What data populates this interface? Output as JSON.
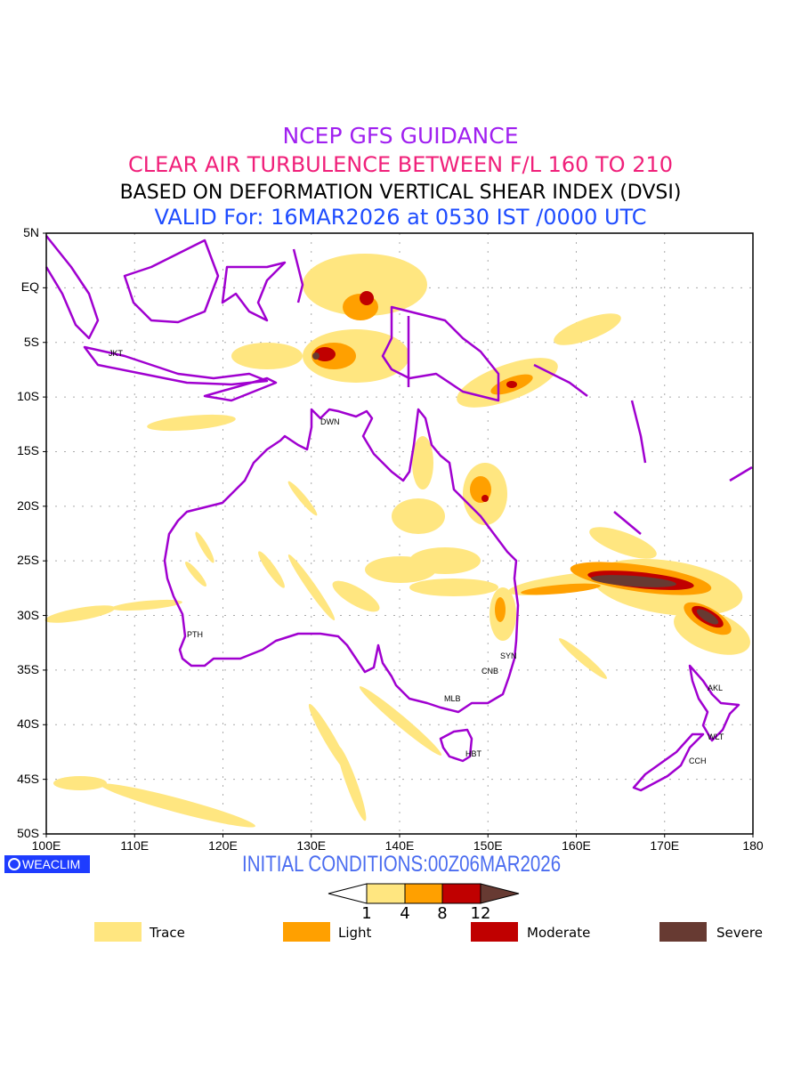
{
  "titles": {
    "line1": "NCEP GFS GUIDANCE",
    "line2": "CLEAR AIR TURBULENCE BETWEEN F/L 160 TO 210",
    "line3": "BASED ON DEFORMATION VERTICAL SHEAR INDEX (DVSI)",
    "line4": "VALID For: 16MAR2026 at 0530 IST /0000 UTC"
  },
  "axes": {
    "lat_labels": [
      "5N",
      "EQ",
      "5S",
      "10S",
      "15S",
      "20S",
      "25S",
      "30S",
      "35S",
      "40S",
      "45S",
      "50S"
    ],
    "lon_labels": [
      "100E",
      "110E",
      "120E",
      "130E",
      "140E",
      "150E",
      "160E",
      "170E",
      "180"
    ]
  },
  "cities": {
    "jkt": "JKT",
    "dwn": "DWN",
    "pth": "PTH",
    "syn": "SYN",
    "cnb": "CNB",
    "mlb": "MLB",
    "hbt": "HBT",
    "akl": "AKL",
    "wlt": "WLT",
    "cch": "CCH"
  },
  "logo": "WEACLIM",
  "initial_conditions": "INITIAL CONDITIONS:00Z06MAR2026",
  "colorbar": {
    "ticks": [
      "1",
      "4",
      "8",
      "12"
    ],
    "colors": [
      "#ffe680",
      "#ffa000",
      "#c00000",
      "#673a32"
    ]
  },
  "legend": [
    {
      "label": "Trace",
      "color": "#ffe680"
    },
    {
      "label": "Light",
      "color": "#ffa000"
    },
    {
      "label": "Moderate",
      "color": "#c00000"
    },
    {
      "label": "Severe",
      "color": "#673a32"
    }
  ],
  "colors": {
    "coast": "#a000d0",
    "grid": "#aaaaaa"
  }
}
